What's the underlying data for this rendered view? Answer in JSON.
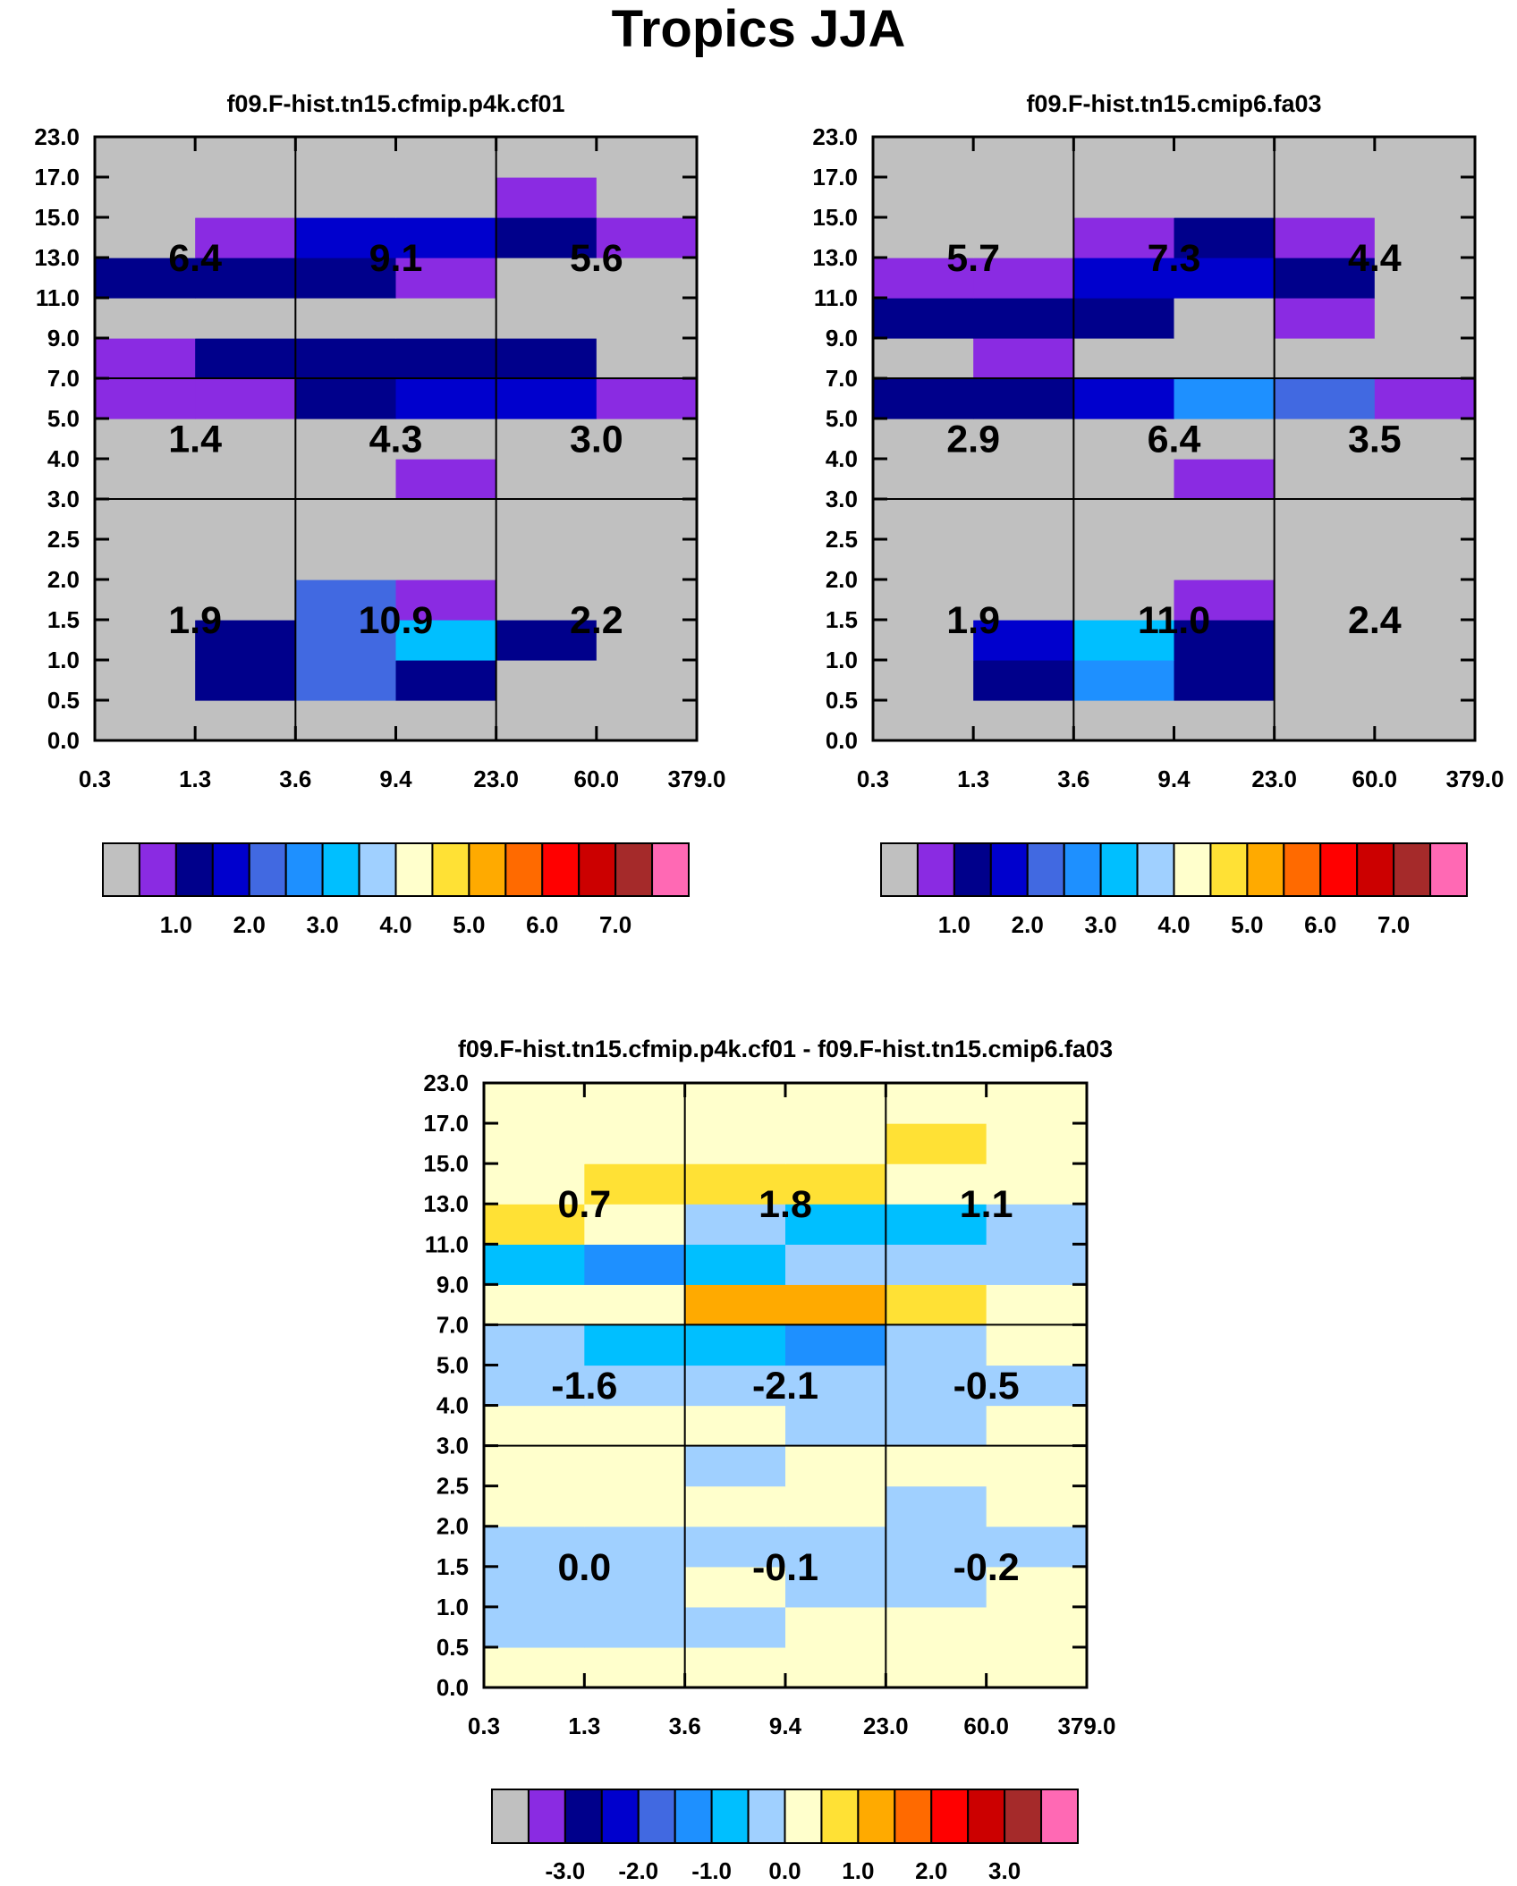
{
  "title": "Tropics JJA",
  "chart_data": [
    {
      "type": "heatmap",
      "title": "f09.F-hist.tn15.cfmip.p4k.cf01",
      "x_ticks": [
        "0.3",
        "1.3",
        "3.6",
        "9.4",
        "23.0",
        "60.0",
        "379.0"
      ],
      "y_ticks": [
        "0.0",
        "0.5",
        "1.0",
        "1.5",
        "2.0",
        "2.5",
        "3.0",
        "4.0",
        "5.0",
        "7.0",
        "9.0",
        "11.0",
        "13.0",
        "15.0",
        "17.0",
        "23.0"
      ],
      "grid": [
        [
          0,
          0,
          0,
          0,
          0,
          0
        ],
        [
          0,
          2,
          4,
          2,
          0,
          0
        ],
        [
          0,
          2,
          4,
          6,
          2,
          0
        ],
        [
          0,
          0,
          4,
          1,
          0,
          0
        ],
        [
          0,
          0,
          0,
          0,
          0,
          0
        ],
        [
          0,
          0,
          0,
          0,
          0,
          0
        ],
        [
          0,
          0,
          0,
          1,
          0,
          0
        ],
        [
          0,
          0,
          0,
          0,
          0,
          0
        ],
        [
          1,
          1,
          2,
          3,
          3,
          1
        ],
        [
          1,
          2,
          2,
          2,
          2,
          0
        ],
        [
          0,
          0,
          0,
          0,
          0,
          0
        ],
        [
          2,
          2,
          2,
          1,
          0,
          0
        ],
        [
          0,
          1,
          3,
          3,
          2,
          1
        ],
        [
          0,
          0,
          0,
          0,
          1,
          0
        ],
        [
          0,
          0,
          0,
          0,
          0,
          0
        ]
      ],
      "annotations": [
        {
          "col": 0,
          "band": "high",
          "label": "6.4"
        },
        {
          "col": 1,
          "band": "high",
          "label": "9.1"
        },
        {
          "col": 2,
          "band": "high",
          "label": "5.6"
        },
        {
          "col": 0,
          "band": "mid",
          "label": "1.4"
        },
        {
          "col": 1,
          "band": "mid",
          "label": "4.3"
        },
        {
          "col": 2,
          "band": "mid",
          "label": "3.0"
        },
        {
          "col": 0,
          "band": "low",
          "label": "1.9"
        },
        {
          "col": 1,
          "band": "low",
          "label": "10.9"
        },
        {
          "col": 2,
          "band": "low",
          "label": "2.2"
        }
      ],
      "colorbar": {
        "colors": [
          "#c0c0c0",
          "#8a2be2",
          "#00008b",
          "#0000cd",
          "#4169e1",
          "#1e90ff",
          "#00bfff",
          "#a0d0ff",
          "#ffffcc",
          "#ffe135",
          "#ffaa00",
          "#ff6a00",
          "#ff0000",
          "#cc0000",
          "#a52a2a",
          "#ff69b4"
        ],
        "labels": [
          "1.0",
          "2.0",
          "3.0",
          "4.0",
          "5.0",
          "6.0",
          "7.0"
        ],
        "label_boundaries": [
          2,
          4,
          6,
          8,
          10,
          12,
          14
        ]
      }
    },
    {
      "type": "heatmap",
      "title": "f09.F-hist.tn15.cmip6.fa03",
      "x_ticks": [
        "0.3",
        "1.3",
        "3.6",
        "9.4",
        "23.0",
        "60.0",
        "379.0"
      ],
      "y_ticks": [
        "0.0",
        "0.5",
        "1.0",
        "1.5",
        "2.0",
        "2.5",
        "3.0",
        "4.0",
        "5.0",
        "7.0",
        "9.0",
        "11.0",
        "13.0",
        "15.0",
        "17.0",
        "23.0"
      ],
      "grid": [
        [
          0,
          0,
          0,
          0,
          0,
          0
        ],
        [
          0,
          2,
          5,
          2,
          0,
          0
        ],
        [
          0,
          3,
          6,
          2,
          0,
          0
        ],
        [
          0,
          0,
          0,
          1,
          0,
          0
        ],
        [
          0,
          0,
          0,
          0,
          0,
          0
        ],
        [
          0,
          0,
          0,
          0,
          0,
          0
        ],
        [
          0,
          0,
          0,
          1,
          0,
          0
        ],
        [
          0,
          0,
          0,
          0,
          0,
          0
        ],
        [
          2,
          2,
          3,
          5,
          4,
          1
        ],
        [
          0,
          1,
          0,
          0,
          0,
          0
        ],
        [
          2,
          2,
          2,
          0,
          1,
          0
        ],
        [
          1,
          1,
          3,
          3,
          2,
          0
        ],
        [
          0,
          0,
          1,
          2,
          1,
          0
        ],
        [
          0,
          0,
          0,
          0,
          0,
          0
        ],
        [
          0,
          0,
          0,
          0,
          0,
          0
        ]
      ],
      "annotations": [
        {
          "col": 0,
          "band": "high",
          "label": "5.7"
        },
        {
          "col": 1,
          "band": "high",
          "label": "7.3"
        },
        {
          "col": 2,
          "band": "high",
          "label": "4.4"
        },
        {
          "col": 0,
          "band": "mid",
          "label": "2.9"
        },
        {
          "col": 1,
          "band": "mid",
          "label": "6.4"
        },
        {
          "col": 2,
          "band": "mid",
          "label": "3.5"
        },
        {
          "col": 0,
          "band": "low",
          "label": "1.9"
        },
        {
          "col": 1,
          "band": "low",
          "label": "11.0"
        },
        {
          "col": 2,
          "band": "low",
          "label": "2.4"
        }
      ],
      "colorbar": {
        "colors": [
          "#c0c0c0",
          "#8a2be2",
          "#00008b",
          "#0000cd",
          "#4169e1",
          "#1e90ff",
          "#00bfff",
          "#a0d0ff",
          "#ffffcc",
          "#ffe135",
          "#ffaa00",
          "#ff6a00",
          "#ff0000",
          "#cc0000",
          "#a52a2a",
          "#ff69b4"
        ],
        "labels": [
          "1.0",
          "2.0",
          "3.0",
          "4.0",
          "5.0",
          "6.0",
          "7.0"
        ],
        "label_boundaries": [
          2,
          4,
          6,
          8,
          10,
          12,
          14
        ]
      }
    },
    {
      "type": "heatmap",
      "title": "f09.F-hist.tn15.cfmip.p4k.cf01 - f09.F-hist.tn15.cmip6.fa03",
      "x_ticks": [
        "0.3",
        "1.3",
        "3.6",
        "9.4",
        "23.0",
        "60.0",
        "379.0"
      ],
      "y_ticks": [
        "0.0",
        "0.5",
        "1.0",
        "1.5",
        "2.0",
        "2.5",
        "3.0",
        "4.0",
        "5.0",
        "7.0",
        "9.0",
        "11.0",
        "13.0",
        "15.0",
        "17.0",
        "23.0"
      ],
      "grid": [
        [
          8,
          8,
          8,
          8,
          8,
          8
        ],
        [
          7,
          7,
          7,
          8,
          8,
          8
        ],
        [
          7,
          7,
          8,
          7,
          7,
          8
        ],
        [
          7,
          7,
          7,
          7,
          7,
          7
        ],
        [
          8,
          8,
          8,
          8,
          7,
          8
        ],
        [
          8,
          8,
          7,
          8,
          8,
          8
        ],
        [
          8,
          8,
          8,
          7,
          7,
          8
        ],
        [
          7,
          7,
          7,
          7,
          7,
          7
        ],
        [
          7,
          6,
          6,
          5,
          7,
          8
        ],
        [
          8,
          8,
          10,
          10,
          9,
          8
        ],
        [
          6,
          5,
          6,
          7,
          7,
          7
        ],
        [
          9,
          8,
          7,
          6,
          6,
          7
        ],
        [
          8,
          9,
          9,
          9,
          8,
          8
        ],
        [
          8,
          8,
          8,
          8,
          9,
          8
        ],
        [
          8,
          8,
          8,
          8,
          8,
          8
        ]
      ],
      "annotations": [
        {
          "col": 0,
          "band": "high",
          "label": "0.7"
        },
        {
          "col": 1,
          "band": "high",
          "label": "1.8"
        },
        {
          "col": 2,
          "band": "high",
          "label": "1.1"
        },
        {
          "col": 0,
          "band": "mid",
          "label": "-1.6"
        },
        {
          "col": 1,
          "band": "mid",
          "label": "-2.1"
        },
        {
          "col": 2,
          "band": "mid",
          "label": "-0.5"
        },
        {
          "col": 0,
          "band": "low",
          "label": "0.0"
        },
        {
          "col": 1,
          "band": "low",
          "label": "-0.1"
        },
        {
          "col": 2,
          "band": "low",
          "label": "-0.2"
        }
      ],
      "colorbar": {
        "colors": [
          "#c0c0c0",
          "#8a2be2",
          "#00008b",
          "#0000cd",
          "#4169e1",
          "#1e90ff",
          "#00bfff",
          "#a0d0ff",
          "#ffffcc",
          "#ffe135",
          "#ffaa00",
          "#ff6a00",
          "#ff0000",
          "#cc0000",
          "#a52a2a",
          "#ff69b4"
        ],
        "labels": [
          "-3.0",
          "-2.0",
          "-1.0",
          "0.0",
          "1.0",
          "2.0",
          "3.0"
        ],
        "label_boundaries": [
          2,
          4,
          6,
          8,
          10,
          12,
          14
        ]
      }
    }
  ]
}
